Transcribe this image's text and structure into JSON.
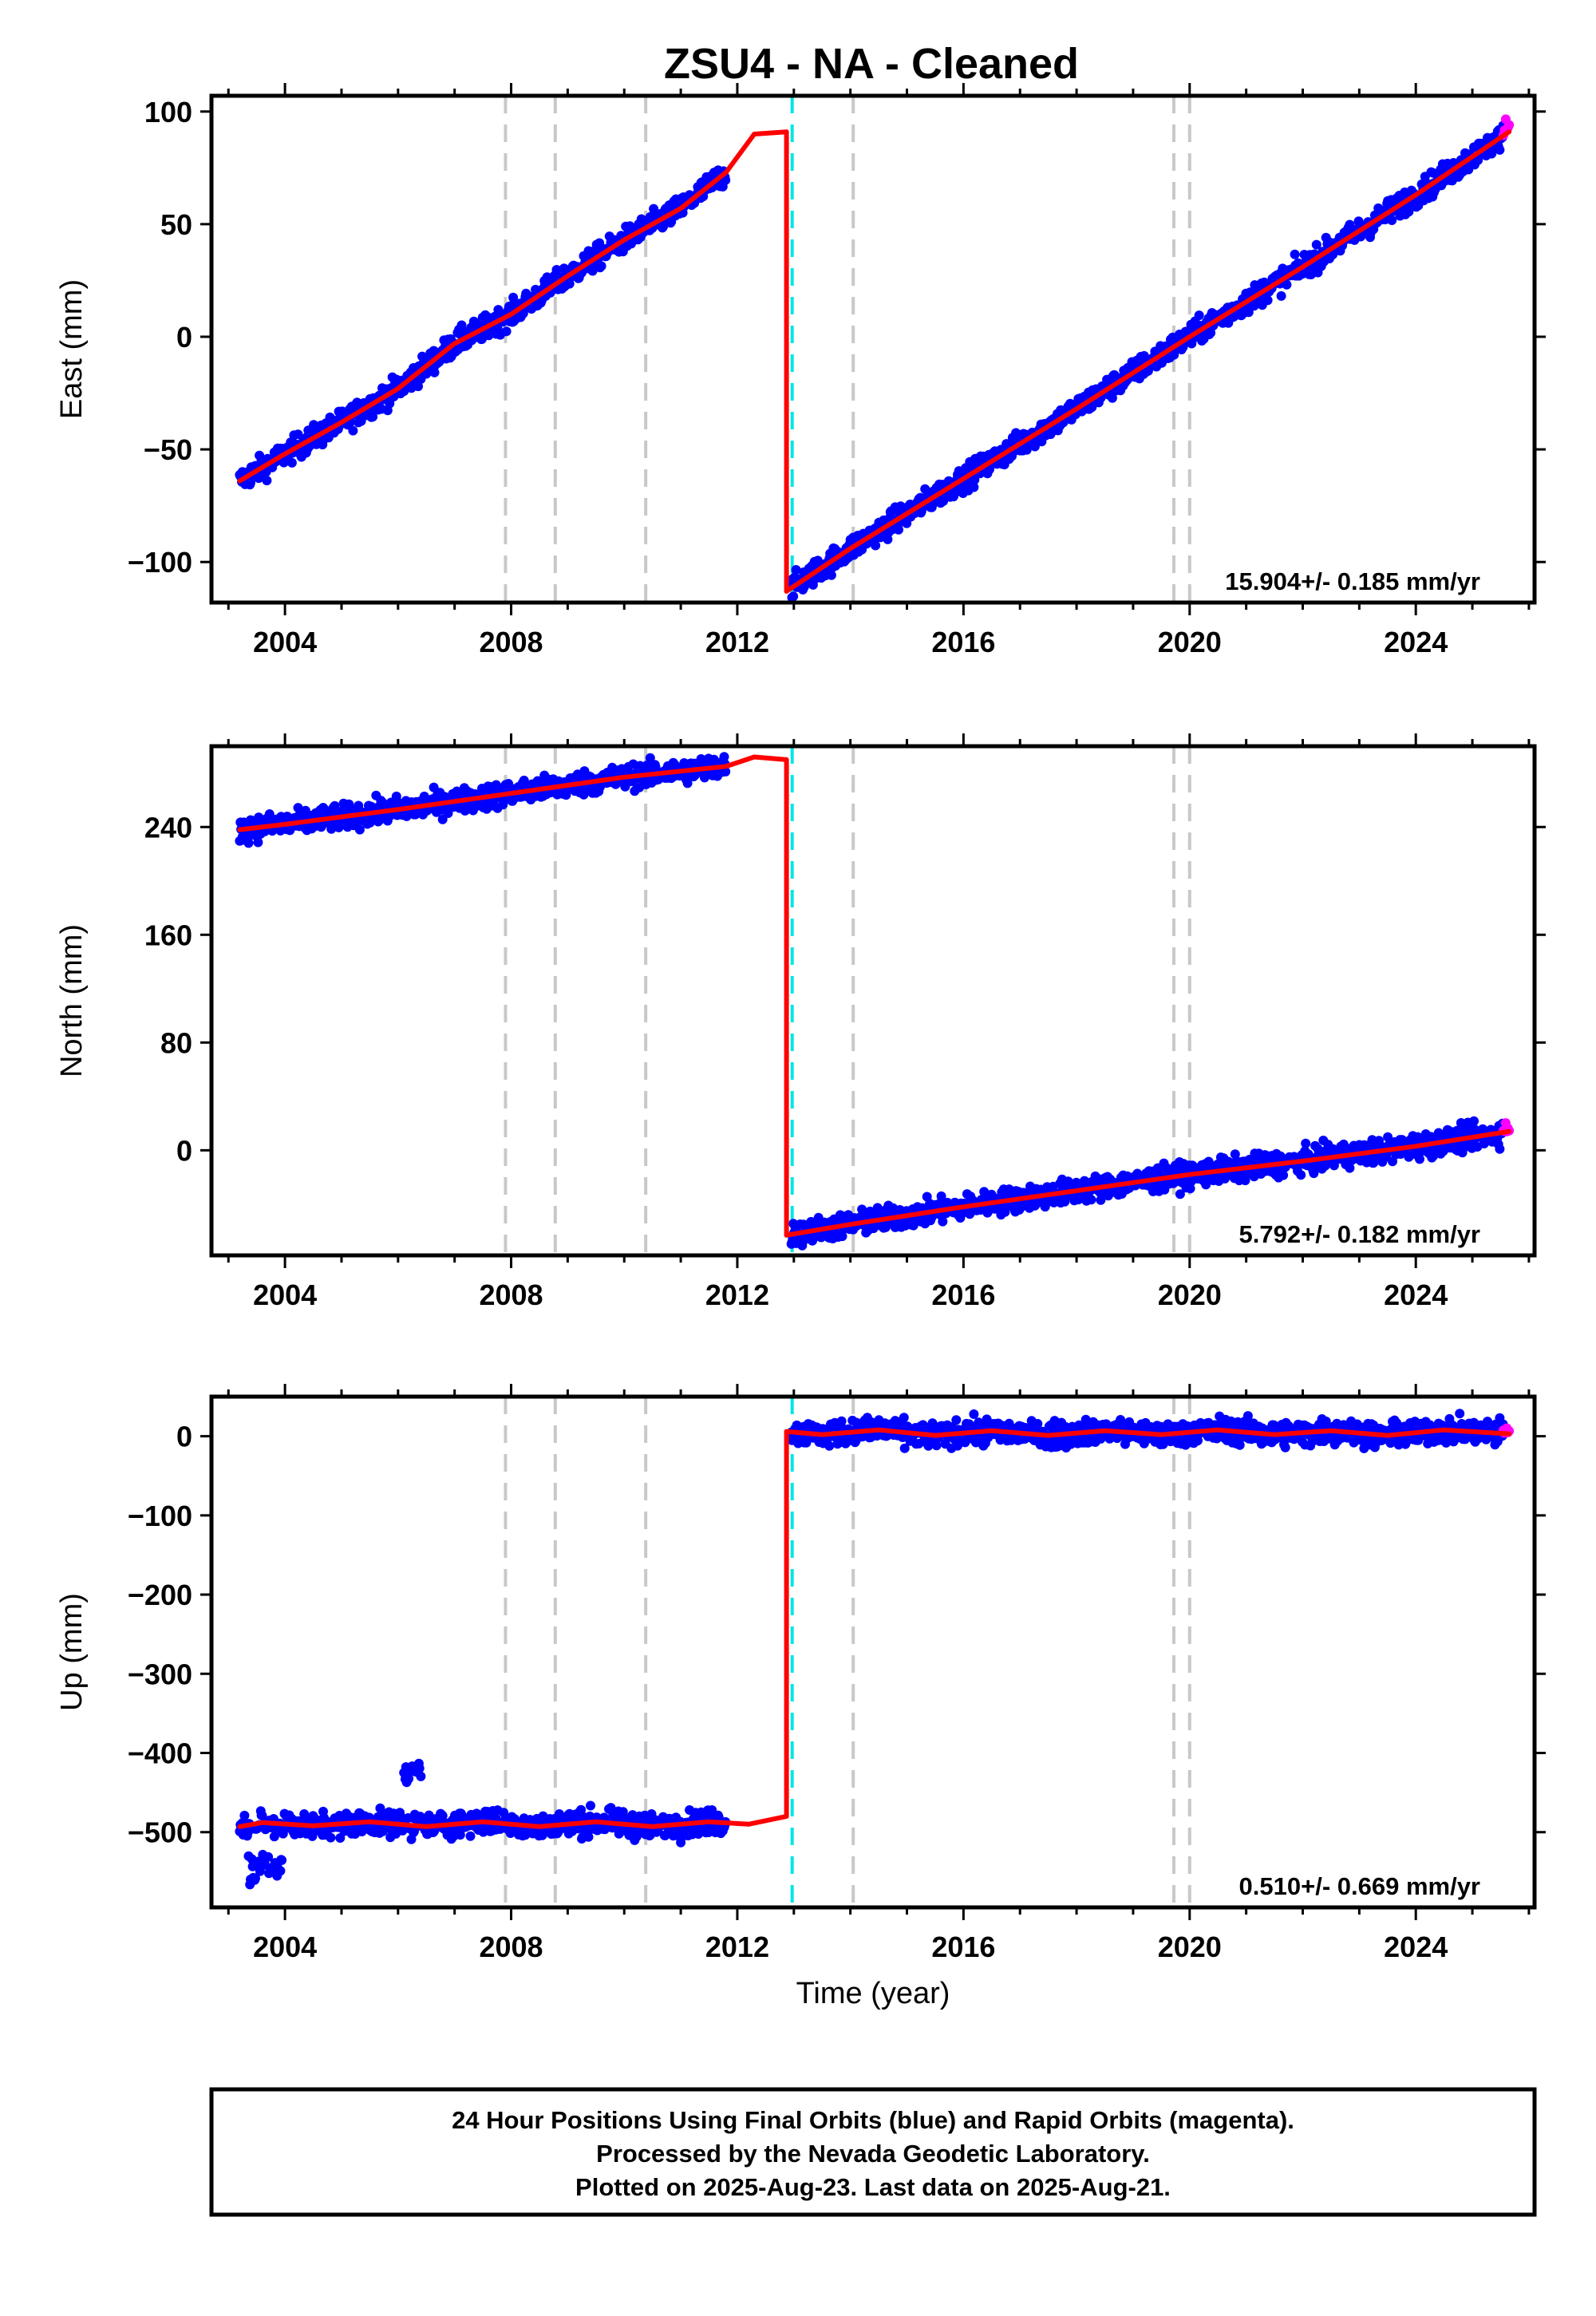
{
  "title": "ZSU4  - NA - Cleaned",
  "colors": {
    "final_points": "#0000ff",
    "rapid_points": "#ff00ff",
    "model": "#ff0000",
    "equipment_change": "#c8c8c8",
    "earthquake": "#00e5e5",
    "frame": "#000000"
  },
  "chart_data": [
    {
      "type": "scatter",
      "component": "East",
      "ylabel": "East (mm)",
      "xlabel": "",
      "xlim": [
        2002.7,
        2026.1
      ],
      "ylim": [
        -118,
        107
      ],
      "yticks": [
        -100,
        -50,
        0,
        50,
        100
      ],
      "xticks": [
        2004,
        2008,
        2012,
        2016,
        2020,
        2024
      ],
      "rate_label": "15.904+/- 0.185 mm/yr",
      "grid": false,
      "final_points_range": [
        2003.2,
        2025.55
      ],
      "rapid_points_range": [
        2025.55,
        2025.65
      ],
      "model_segments": [
        {
          "x": [
            2003.2,
            2004.0,
            2005.0,
            2006.0,
            2007.0,
            2008.0,
            2009.0,
            2010.0,
            2011.0,
            2011.8,
            2012.3,
            2012.87
          ],
          "y": [
            -64,
            -52,
            -38,
            -23,
            -3,
            10,
            27,
            43,
            57,
            73,
            90,
            91
          ]
        },
        {
          "x": [
            2012.87,
            2012.87
          ],
          "y": [
            91,
            -113
          ]
        },
        {
          "x": [
            2012.87,
            2014.0,
            2016.0,
            2018.0,
            2020.0,
            2022.0,
            2024.0,
            2025.65
          ],
          "y": [
            -113,
            -94,
            -63,
            -32,
            0,
            31,
            63,
            91
          ]
        }
      ]
    },
    {
      "type": "scatter",
      "component": "North",
      "ylabel": "North (mm)",
      "xlabel": "",
      "xlim": [
        2002.7,
        2026.1
      ],
      "ylim": [
        -78,
        300
      ],
      "yticks": [
        0,
        80,
        160,
        240
      ],
      "xticks": [
        2004,
        2008,
        2012,
        2016,
        2020,
        2024
      ],
      "rate_label": "5.792+/- 0.182 mm/yr",
      "grid": false,
      "final_points_range": [
        2003.2,
        2025.55
      ],
      "rapid_points_range": [
        2025.55,
        2025.65
      ],
      "model_segments": [
        {
          "x": [
            2003.2,
            2004.0,
            2006.0,
            2008.0,
            2010.0,
            2011.8,
            2012.3,
            2012.87
          ],
          "y": [
            238,
            242,
            253,
            265,
            277,
            285,
            292,
            290
          ]
        },
        {
          "x": [
            2012.87,
            2012.87
          ],
          "y": [
            290,
            -63
          ]
        },
        {
          "x": [
            2012.87,
            2014.0,
            2016.0,
            2018.0,
            2020.0,
            2022.0,
            2024.0,
            2025.65
          ],
          "y": [
            -63,
            -55,
            -42,
            -30,
            -18,
            -8,
            3,
            14
          ]
        }
      ]
    },
    {
      "type": "scatter",
      "component": "Up",
      "ylabel": "Up (mm)",
      "xlabel": "Time (year)",
      "xlim": [
        2002.7,
        2026.1
      ],
      "ylim": [
        -595,
        50
      ],
      "yticks": [
        -500,
        -400,
        -300,
        -200,
        -100,
        0
      ],
      "xticks": [
        2004,
        2008,
        2012,
        2016,
        2020,
        2024
      ],
      "rate_label": "0.510+/- 0.669 mm/yr",
      "grid": false,
      "final_points_range": [
        2003.2,
        2025.55
      ],
      "rapid_points_range": [
        2025.55,
        2025.65
      ],
      "model_segments": [
        {
          "x": [
            2003.2,
            2003.6,
            2004.5,
            2005.5,
            2006.5,
            2007.5,
            2008.5,
            2009.5,
            2010.5,
            2011.5,
            2012.2,
            2012.87
          ],
          "y": [
            -493,
            -488,
            -492,
            -487,
            -493,
            -487,
            -493,
            -487,
            -493,
            -487,
            -490,
            -480
          ]
        },
        {
          "x": [
            2012.87,
            2012.87
          ],
          "y": [
            -480,
            6
          ]
        },
        {
          "x": [
            2012.87,
            2013.5,
            2014.5,
            2015.5,
            2016.5,
            2017.5,
            2018.5,
            2019.5,
            2020.5,
            2021.5,
            2022.5,
            2023.5,
            2024.5,
            2025.65
          ],
          "y": [
            6,
            2,
            8,
            1,
            7,
            1,
            7,
            2,
            8,
            2,
            7,
            1,
            8,
            3
          ]
        }
      ]
    }
  ],
  "equipment_changes": [
    2007.9,
    2008.78,
    2010.38,
    2014.05,
    2019.72,
    2020.0
  ],
  "earthquakes": [
    2012.97
  ],
  "footer": {
    "line1": "24 Hour Positions Using Final Orbits (blue) and Rapid Orbits (magenta).",
    "line2": "Processed by the Nevada Geodetic Laboratory.",
    "line3": "Plotted on 2025-Aug-23. Last data on 2025-Aug-21."
  }
}
